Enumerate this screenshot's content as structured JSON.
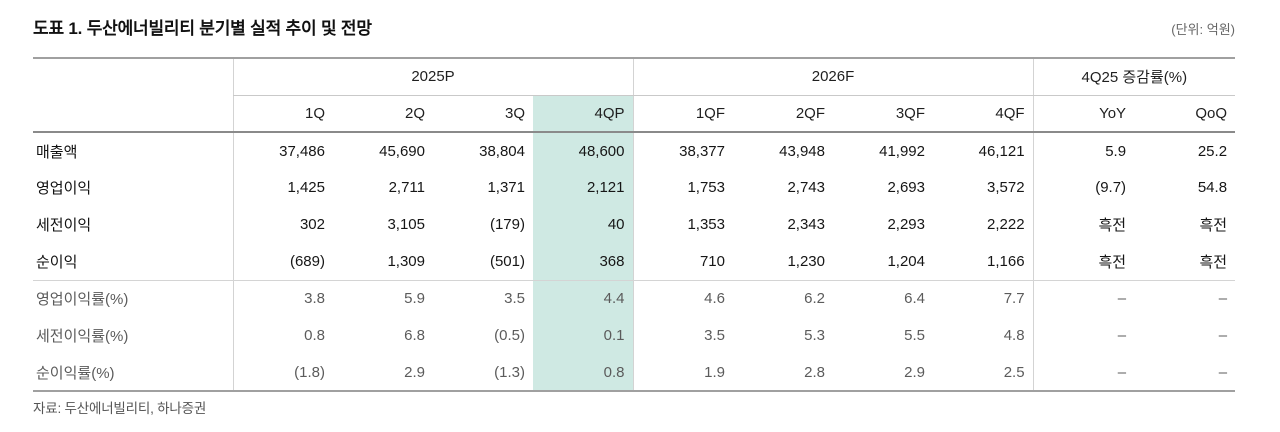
{
  "page": {
    "title": "도표 1. 두산에너빌리티 분기별 실적 추이 및 전망",
    "unit_note": "(단위: 억원)",
    "source": "자료: 두산에너빌리티, 하나증권"
  },
  "table": {
    "col_groups": [
      {
        "label": "2025P",
        "span": 4
      },
      {
        "label": "2026F",
        "span": 4
      },
      {
        "label": "4Q25 증감률(%)",
        "span": 2
      }
    ],
    "columns": [
      "1Q",
      "2Q",
      "3Q",
      "4QP",
      "1QF",
      "2QF",
      "3QF",
      "4QF",
      "YoY",
      "QoQ"
    ],
    "highlight_column": "4QP",
    "highlight_color": "#cfe9e3",
    "rows": [
      {
        "label": "매출액",
        "section": "main",
        "values": [
          "37,486",
          "45,690",
          "38,804",
          "48,600",
          "38,377",
          "43,948",
          "41,992",
          "46,121",
          "5.9",
          "25.2"
        ]
      },
      {
        "label": "영업이익",
        "section": "main",
        "values": [
          "1,425",
          "2,711",
          "1,371",
          "2,121",
          "1,753",
          "2,743",
          "2,693",
          "3,572",
          "(9.7)",
          "54.8"
        ]
      },
      {
        "label": "세전이익",
        "section": "main",
        "values": [
          "302",
          "3,105",
          "(179)",
          "40",
          "1,353",
          "2,343",
          "2,293",
          "2,222",
          "흑전",
          "흑전"
        ]
      },
      {
        "label": "순이익",
        "section": "main",
        "values": [
          "(689)",
          "1,309",
          "(501)",
          "368",
          "710",
          "1,230",
          "1,204",
          "1,166",
          "흑전",
          "흑전"
        ]
      },
      {
        "label": "영업이익률(%)",
        "section": "ratio",
        "values": [
          "3.8",
          "5.9",
          "3.5",
          "4.4",
          "4.6",
          "6.2",
          "6.4",
          "7.7",
          "–",
          "–"
        ]
      },
      {
        "label": "세전이익률(%)",
        "section": "ratio",
        "values": [
          "0.8",
          "6.8",
          "(0.5)",
          "0.1",
          "3.5",
          "5.3",
          "5.5",
          "4.8",
          "–",
          "–"
        ]
      },
      {
        "label": "순이익률(%)",
        "section": "ratio",
        "values": [
          "(1.8)",
          "2.9",
          "(1.3)",
          "0.8",
          "1.9",
          "2.8",
          "2.9",
          "2.5",
          "–",
          "–"
        ]
      }
    ]
  }
}
